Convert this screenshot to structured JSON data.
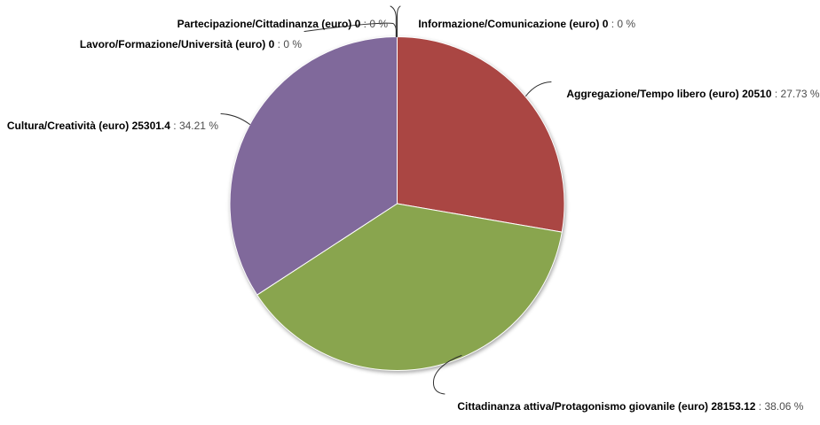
{
  "chart_data": {
    "type": "pie",
    "title": "",
    "unit_label": "euro",
    "legend": "none",
    "background": "#FFFFFF",
    "start_angle_deg": 0,
    "direction": "clockwise",
    "label_format": "{name} (euro) {value} : {percent} %",
    "slices": [
      {
        "name": "Informazione/Comunicazione",
        "value": 0,
        "percent": 0,
        "color": null,
        "label_bold": "Informazione/Comunicazione (euro) 0",
        "label_rest": " : 0 %"
      },
      {
        "name": "Aggregazione/Tempo libero",
        "value": 20510,
        "percent": 27.73,
        "color": "#AA4643",
        "label_bold": "Aggregazione/Tempo libero (euro) 20510",
        "label_rest": " : 27.73 %"
      },
      {
        "name": "Cittadinanza attiva/Protagonismo giovanile",
        "value": 28153.12,
        "percent": 38.06,
        "color": "#89A54E",
        "label_bold": "Cittadinanza attiva/Protagonismo giovanile (euro) 28153.12",
        "label_rest": " : 38.06 %"
      },
      {
        "name": "Cultura/Creatività",
        "value": 25301.4,
        "percent": 34.21,
        "color": "#80699B",
        "label_bold": "Cultura/Creatività (euro) 25301.4",
        "label_rest": " : 34.21 %"
      },
      {
        "name": "Lavoro/Formazione/Università",
        "value": 0,
        "percent": 0,
        "color": null,
        "label_bold": "Lavoro/Formazione/Università (euro) 0",
        "label_rest": " : 0 %"
      },
      {
        "name": "Partecipazione/Cittadinanza",
        "value": 0,
        "percent": 0,
        "color": null,
        "label_bold": "Partecipazione/Cittadinanza (euro) 0",
        "label_rest": " : 0 %"
      }
    ],
    "style": {
      "label_text_color": "#000000",
      "label_percent_color": "#4d4d4d",
      "connector_color": "#303030",
      "slice_border_color": "#FFFFFF"
    }
  }
}
